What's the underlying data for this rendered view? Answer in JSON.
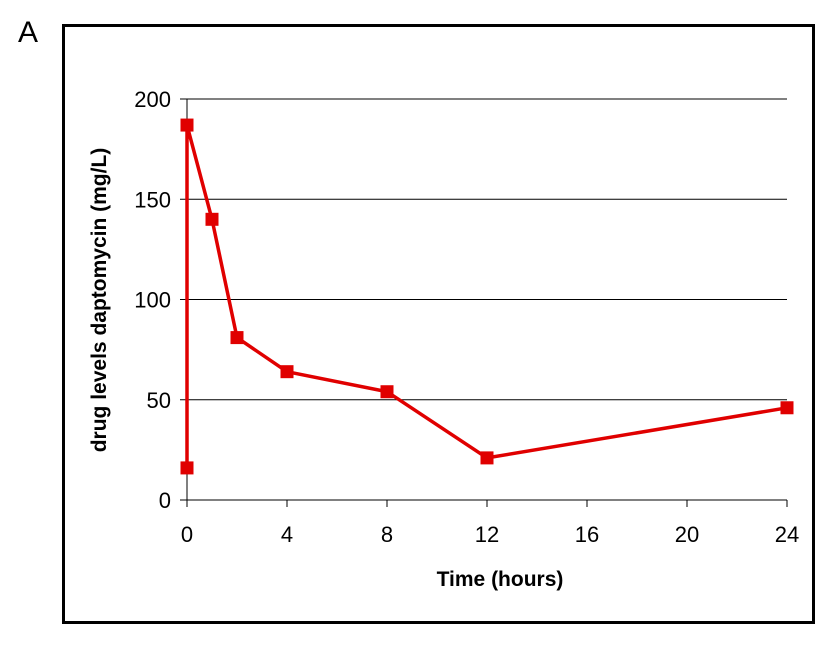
{
  "panel_label": "A",
  "chart_data": {
    "type": "line",
    "title": "",
    "xlabel": "Time (hours)",
    "ylabel": "drug levels daptomycin (mg/L)",
    "xlim": [
      0,
      24
    ],
    "ylim": [
      0,
      200
    ],
    "x_ticks": [
      0,
      4,
      8,
      12,
      16,
      20,
      24
    ],
    "y_ticks": [
      0,
      50,
      100,
      150,
      200
    ],
    "grid": "horizontal",
    "series": [
      {
        "color": "#e00000",
        "marker": "square",
        "points": [
          {
            "x": 0,
            "y": 16
          },
          {
            "x": 0,
            "y": 187
          },
          {
            "x": 1,
            "y": 140
          },
          {
            "x": 2,
            "y": 81
          },
          {
            "x": 4,
            "y": 64
          },
          {
            "x": 8,
            "y": 54
          },
          {
            "x": 12,
            "y": 21
          },
          {
            "x": 24,
            "y": 46
          }
        ]
      }
    ]
  }
}
